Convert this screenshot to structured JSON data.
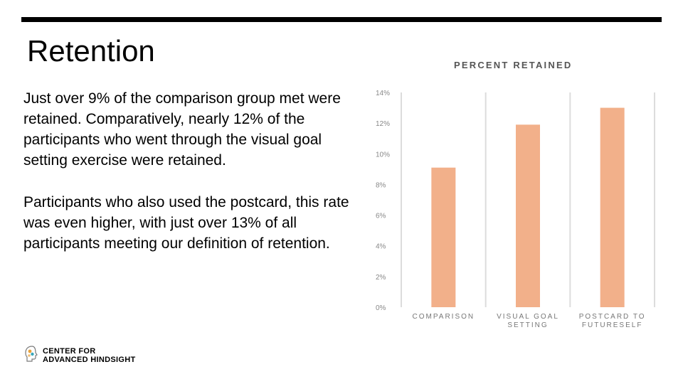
{
  "slide": {
    "title": "Retention",
    "paragraphs": [
      "Just over 9% of the comparison group met were retained. Comparatively, nearly 12% of the participants who went through the visual goal setting exercise were retained.",
      "Participants who also used the postcard, this rate was even higher, with just over 13% of all participants meeting our definition of retention."
    ]
  },
  "logo": {
    "line1": "CENTER FOR",
    "line2": "ADVANCED HINDSIGHT",
    "icon": "head-profile-icon",
    "colors": [
      "#e9a23b",
      "#3aa6b9",
      "#7a7a7a"
    ]
  },
  "chart_data": {
    "type": "bar",
    "title": "PERCENT RETAINED",
    "categories": [
      "COMPARISON",
      "VISUAL GOAL SETTING",
      "POSTCARD TO FUTURESELF"
    ],
    "category_lines": [
      [
        "COMPARISON"
      ],
      [
        "VISUAL GOAL",
        "SETTING"
      ],
      [
        "POSTCARD TO",
        "FUTURESELF"
      ]
    ],
    "values": [
      9.1,
      11.9,
      13.0
    ],
    "yticks": [
      "0%",
      "2%",
      "4%",
      "6%",
      "8%",
      "10%",
      "12%",
      "14%"
    ],
    "ylim": [
      0,
      14
    ],
    "grid": "vertical",
    "bar_color": "#f2b08a",
    "grid_color": "#dcdcdc"
  }
}
